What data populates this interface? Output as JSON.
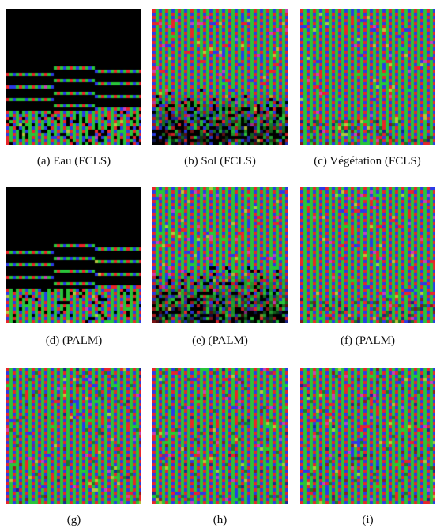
{
  "figure": {
    "panels": [
      {
        "id": "a",
        "caption": "(a) Eau (FCLS)",
        "pattern": "water"
      },
      {
        "id": "b",
        "caption": "(b) Sol (FCLS)",
        "pattern": "soil"
      },
      {
        "id": "c",
        "caption": "(c) Végétation (FCLS)",
        "pattern": "vegetation"
      },
      {
        "id": "d",
        "caption": "(d) (PALM)",
        "pattern": "water"
      },
      {
        "id": "e",
        "caption": "(e) (PALM)",
        "pattern": "soil"
      },
      {
        "id": "f",
        "caption": "(f) (PALM)",
        "pattern": "vegetation"
      },
      {
        "id": "g",
        "caption": "(g)",
        "pattern": "full"
      },
      {
        "id": "h",
        "caption": "(h)",
        "pattern": "full"
      },
      {
        "id": "i",
        "caption": "(i)",
        "pattern": "full"
      }
    ],
    "colors": {
      "red": "#e8262a",
      "green": "#29c43a",
      "blue": "#2a3be6",
      "magenta": "#c93fb8",
      "yellow": "#b8c23c",
      "background": "#000000"
    }
  }
}
